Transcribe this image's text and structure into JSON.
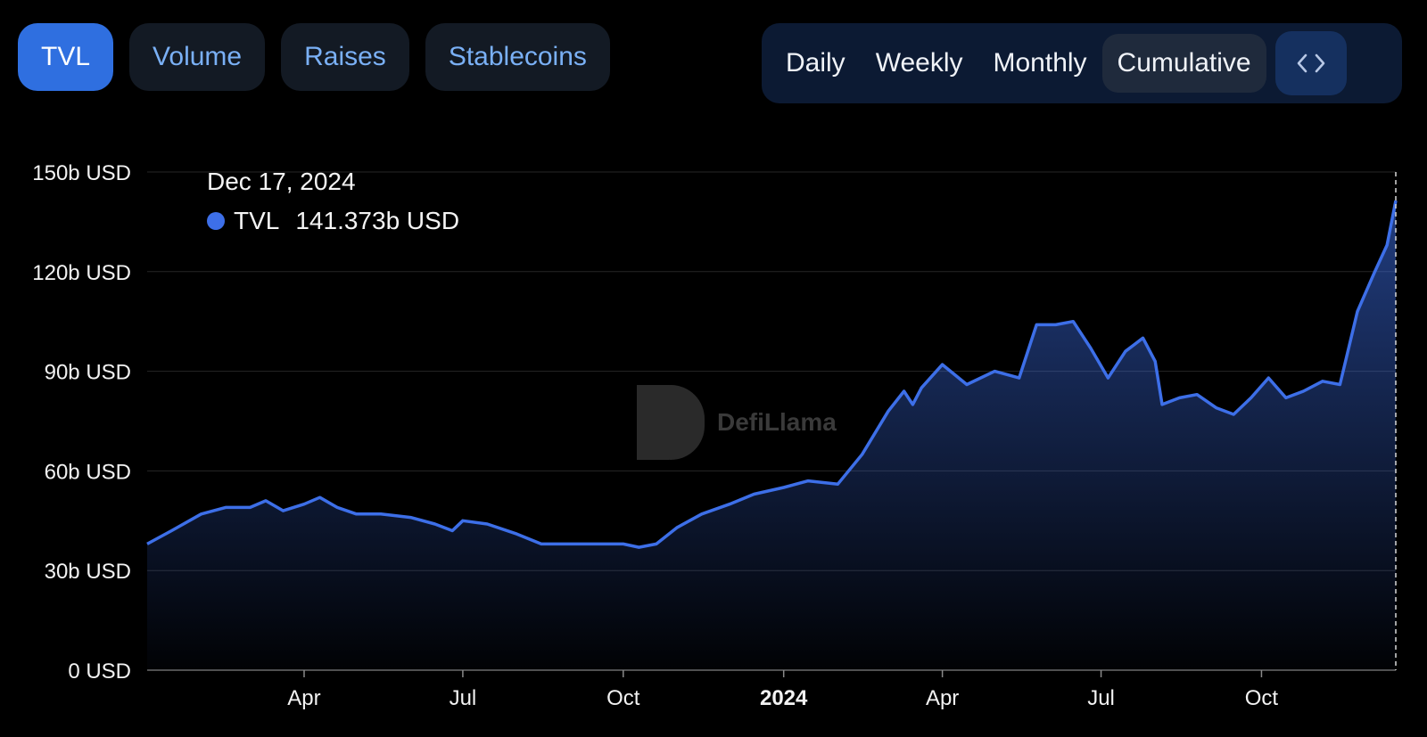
{
  "tabs": [
    {
      "label": "TVL",
      "active": true
    },
    {
      "label": "Volume",
      "active": false
    },
    {
      "label": "Raises",
      "active": false
    },
    {
      "label": "Stablecoins",
      "active": false
    }
  ],
  "periods": [
    {
      "label": "Daily",
      "active": false
    },
    {
      "label": "Weekly",
      "active": false
    },
    {
      "label": "Monthly",
      "active": false
    },
    {
      "label": "Cumulative",
      "active": true
    }
  ],
  "embed_icon": "code-brackets-icon",
  "watermark": "DefiLlama",
  "tooltip": {
    "date": "Dec 17, 2024",
    "series": "TVL",
    "value": "141.373b USD"
  },
  "colors": {
    "line": "#3d6fe8",
    "active_tab": "#2f6fe0",
    "tab_text": "#7ab0f5"
  },
  "chart_data": {
    "type": "area",
    "series": [
      {
        "name": "TVL",
        "unit": "b USD"
      }
    ],
    "x": [
      "2023-01-01",
      "2023-01-15",
      "2023-02-01",
      "2023-02-15",
      "2023-03-01",
      "2023-03-10",
      "2023-03-20",
      "2023-04-01",
      "2023-04-10",
      "2023-04-20",
      "2023-05-01",
      "2023-05-15",
      "2023-06-01",
      "2023-06-15",
      "2023-06-25",
      "2023-07-01",
      "2023-07-15",
      "2023-08-01",
      "2023-08-15",
      "2023-09-01",
      "2023-09-15",
      "2023-10-01",
      "2023-10-10",
      "2023-10-20",
      "2023-11-01",
      "2023-11-15",
      "2023-12-01",
      "2023-12-15",
      "2024-01-01",
      "2024-01-15",
      "2024-02-01",
      "2024-02-15",
      "2024-03-01",
      "2024-03-10",
      "2024-03-15",
      "2024-03-20",
      "2024-04-01",
      "2024-04-15",
      "2024-05-01",
      "2024-05-15",
      "2024-05-25",
      "2024-06-05",
      "2024-06-15",
      "2024-06-25",
      "2024-07-05",
      "2024-07-15",
      "2024-07-25",
      "2024-08-01",
      "2024-08-05",
      "2024-08-15",
      "2024-08-25",
      "2024-09-05",
      "2024-09-15",
      "2024-09-25",
      "2024-10-05",
      "2024-10-15",
      "2024-10-25",
      "2024-11-05",
      "2024-11-15",
      "2024-11-25",
      "2024-12-05",
      "2024-12-12",
      "2024-12-17"
    ],
    "values": [
      38,
      42,
      47,
      49,
      49,
      51,
      48,
      50,
      52,
      49,
      47,
      47,
      46,
      44,
      42,
      45,
      44,
      41,
      38,
      38,
      38,
      38,
      37,
      38,
      43,
      47,
      50,
      53,
      55,
      57,
      56,
      65,
      78,
      84,
      80,
      85,
      92,
      86,
      90,
      88,
      104,
      104,
      105,
      97,
      88,
      96,
      100,
      93,
      80,
      82,
      83,
      79,
      77,
      82,
      88,
      82,
      84,
      87,
      86,
      108,
      120,
      128,
      141.373
    ],
    "xlabel": "",
    "ylabel": "",
    "y_ticks": [
      "0 USD",
      "30b USD",
      "60b USD",
      "90b USD",
      "120b USD",
      "150b USD"
    ],
    "x_ticks": [
      {
        "label": "Apr",
        "date": "2023-04-01",
        "bold": false
      },
      {
        "label": "Jul",
        "date": "2023-07-01",
        "bold": false
      },
      {
        "label": "Oct",
        "date": "2023-10-01",
        "bold": false
      },
      {
        "label": "2024",
        "date": "2024-01-01",
        "bold": true
      },
      {
        "label": "Apr",
        "date": "2024-04-01",
        "bold": false
      },
      {
        "label": "Jul",
        "date": "2024-07-01",
        "bold": false
      },
      {
        "label": "Oct",
        "date": "2024-10-01",
        "bold": false
      }
    ],
    "ylim": [
      0,
      150
    ],
    "xlim": [
      "2023-01-01",
      "2024-12-17"
    ],
    "grid": true,
    "crosshair_date": "2024-12-17"
  }
}
